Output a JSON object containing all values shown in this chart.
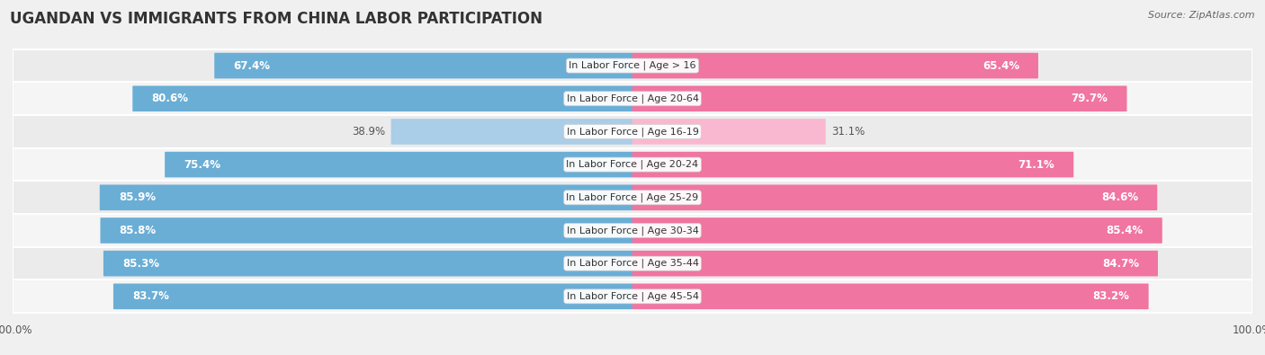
{
  "title": "UGANDAN VS IMMIGRANTS FROM CHINA LABOR PARTICIPATION",
  "source": "Source: ZipAtlas.com",
  "categories": [
    "In Labor Force | Age > 16",
    "In Labor Force | Age 20-64",
    "In Labor Force | Age 16-19",
    "In Labor Force | Age 20-24",
    "In Labor Force | Age 25-29",
    "In Labor Force | Age 30-34",
    "In Labor Force | Age 35-44",
    "In Labor Force | Age 45-54"
  ],
  "ugandan_values": [
    67.4,
    80.6,
    38.9,
    75.4,
    85.9,
    85.8,
    85.3,
    83.7
  ],
  "china_values": [
    65.4,
    79.7,
    31.1,
    71.1,
    84.6,
    85.4,
    84.7,
    83.2
  ],
  "ugandan_color": "#6aaed6",
  "ugandan_color_light": "#aacde8",
  "china_color": "#f075a0",
  "china_color_light": "#f9b8cf",
  "bar_height": 0.72,
  "bg_color_even": "#ebebeb",
  "bg_color_odd": "#f5f5f5",
  "label_fontsize": 8.5,
  "title_fontsize": 12,
  "legend_fontsize": 9,
  "cat_label_fontsize": 8.0
}
